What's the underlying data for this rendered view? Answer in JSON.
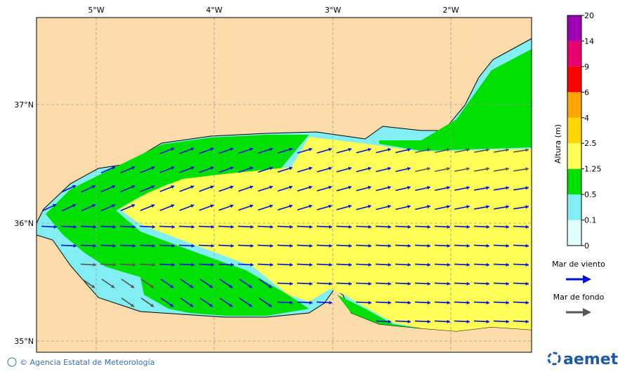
{
  "map": {
    "lon_labels": [
      "5°W",
      "4°W",
      "3°W",
      "2°W"
    ],
    "lat_labels": [
      "37°N",
      "36°N",
      "35°N"
    ],
    "colorbar": {
      "title": "Altura (m)",
      "levels": [
        0,
        0.1,
        0.5,
        1.25,
        2.5,
        4,
        6,
        9,
        14,
        20
      ],
      "colors": [
        "#e0ffff",
        "#80eef2",
        "#00e000",
        "#ffff55",
        "#ffd700",
        "#ffa500",
        "#ff0000",
        "#e8006e",
        "#a000b4"
      ]
    },
    "legend": [
      {
        "label": "Mar de viento",
        "color": "#0010d8"
      },
      {
        "label": "Mar de fondo",
        "color": "#555555"
      }
    ],
    "footer": {
      "credit": "© Agencia Estatal de Meteorología",
      "logo": "aemet"
    }
  }
}
